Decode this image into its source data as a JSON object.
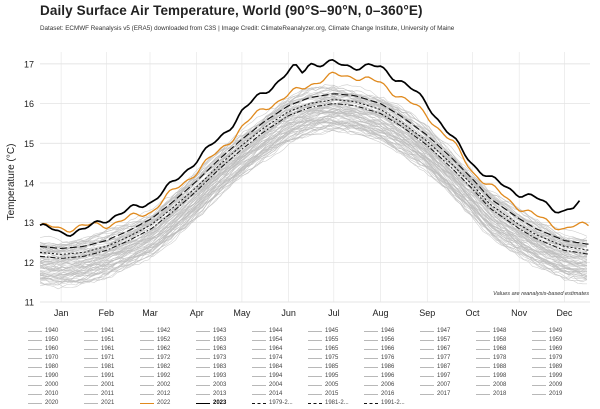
{
  "title": "Daily Surface Air Temperature, World (90°S–90°N, 0–360°E)",
  "subtitle": "Dataset: ECMWF Reanalysis v5 (ERA5) downloaded from C3S | Image Credit: ClimateReanalyzer.org, Climate Change Institute, University of Maine",
  "colors": {
    "background_years": "#bdbdbd",
    "year_2022": "#e08a1e",
    "year_2023": "#000000",
    "climatology": "#111111"
  },
  "chart_data": {
    "type": "line",
    "title": "Daily Surface Air Temperature, World (90°S–90°N, 0–360°E)",
    "xlabel": "",
    "ylabel": "Temperature (°C)",
    "x_tick_labels": [
      "Jan",
      "Feb",
      "Mar",
      "Apr",
      "May",
      "Jun",
      "Jul",
      "Aug",
      "Sep",
      "Oct",
      "Nov",
      "Dec"
    ],
    "x_ticks_day": [
      15,
      45,
      74,
      105,
      135,
      166,
      196,
      227,
      258,
      288,
      319,
      349
    ],
    "xlim": [
      1,
      366
    ],
    "ylim": [
      11,
      17.3
    ],
    "y_ticks": [
      11,
      12,
      13,
      14,
      15,
      16,
      17
    ],
    "grid": true,
    "annotation": "Values are reanalysis-based estimates",
    "background_years_count": 80,
    "series": [
      {
        "name": "2023",
        "day": [
          1,
          15,
          30,
          45,
          60,
          75,
          90,
          105,
          120,
          135,
          150,
          160,
          170,
          175,
          180,
          185,
          196,
          210,
          227,
          240,
          258,
          275,
          288,
          300,
          310,
          319,
          330,
          340,
          349,
          355,
          360
        ],
        "values": [
          12.9,
          12.75,
          12.8,
          13.1,
          13.3,
          13.55,
          14.0,
          14.6,
          15.1,
          15.8,
          16.3,
          16.6,
          16.9,
          16.8,
          17.05,
          17.0,
          17.0,
          16.95,
          16.9,
          16.6,
          16.0,
          15.1,
          14.5,
          14.1,
          13.9,
          13.75,
          13.6,
          13.4,
          13.3,
          13.35,
          13.5
        ]
      },
      {
        "name": "2022",
        "day": [
          1,
          15,
          30,
          45,
          60,
          75,
          90,
          105,
          120,
          135,
          150,
          166,
          180,
          196,
          210,
          227,
          240,
          258,
          275,
          288,
          300,
          319,
          330,
          349,
          366
        ],
        "values": [
          12.9,
          12.85,
          12.9,
          12.95,
          13.1,
          13.3,
          13.8,
          14.3,
          14.8,
          15.4,
          15.9,
          16.2,
          16.5,
          16.7,
          16.7,
          16.5,
          16.2,
          15.7,
          15.0,
          14.3,
          13.9,
          13.4,
          13.15,
          12.85,
          12.95
        ]
      },
      {
        "name": "1991–2020",
        "day": [
          1,
          15,
          30,
          45,
          60,
          75,
          90,
          105,
          120,
          135,
          150,
          166,
          180,
          196,
          210,
          227,
          240,
          258,
          275,
          288,
          300,
          319,
          330,
          349,
          366
        ],
        "values": [
          12.4,
          12.35,
          12.4,
          12.55,
          12.8,
          13.1,
          13.55,
          14.05,
          14.6,
          15.1,
          15.55,
          15.95,
          16.15,
          16.25,
          16.2,
          16.0,
          15.7,
          15.2,
          14.6,
          14.1,
          13.6,
          13.1,
          12.85,
          12.55,
          12.45
        ]
      },
      {
        "name": "1981–2010",
        "day": [
          1,
          15,
          30,
          45,
          60,
          75,
          90,
          105,
          120,
          135,
          150,
          166,
          180,
          196,
          210,
          227,
          240,
          258,
          275,
          288,
          300,
          319,
          330,
          349,
          366
        ],
        "values": [
          12.25,
          12.2,
          12.25,
          12.4,
          12.65,
          12.95,
          13.4,
          13.9,
          14.45,
          14.95,
          15.4,
          15.8,
          16.0,
          16.1,
          16.05,
          15.85,
          15.55,
          15.05,
          14.45,
          13.95,
          13.45,
          12.95,
          12.7,
          12.4,
          12.3
        ]
      },
      {
        "name": "1979–2000",
        "day": [
          1,
          15,
          30,
          45,
          60,
          75,
          90,
          105,
          120,
          135,
          150,
          166,
          180,
          196,
          210,
          227,
          240,
          258,
          275,
          288,
          300,
          319,
          330,
          349,
          366
        ],
        "values": [
          12.15,
          12.1,
          12.15,
          12.3,
          12.55,
          12.85,
          13.3,
          13.8,
          14.35,
          14.85,
          15.3,
          15.7,
          15.9,
          16.0,
          15.95,
          15.75,
          15.45,
          14.95,
          14.35,
          13.85,
          13.35,
          12.85,
          12.6,
          12.3,
          12.2
        ]
      }
    ]
  },
  "legend": {
    "columns": [
      [
        "1940",
        "1950",
        "1960",
        "1970",
        "1980",
        "1990",
        "2000",
        "2010",
        "2020"
      ],
      [
        "1941",
        "1951",
        "1961",
        "1971",
        "1981",
        "1991",
        "2001",
        "2011",
        "2021"
      ],
      [
        "1942",
        "1952",
        "1962",
        "1972",
        "1982",
        "1992",
        "2002",
        "2012",
        "2022"
      ],
      [
        "1943",
        "1953",
        "1963",
        "1973",
        "1983",
        "1993",
        "2003",
        "2013",
        "2023"
      ],
      [
        "1944",
        "1954",
        "1964",
        "1974",
        "1984",
        "1994",
        "2004",
        "2014",
        "1979-2..."
      ],
      [
        "1945",
        "1955",
        "1965",
        "1975",
        "1985",
        "1995",
        "2005",
        "2015",
        "1981-2..."
      ],
      [
        "1946",
        "1956",
        "1966",
        "1976",
        "1986",
        "1996",
        "2006",
        "2016",
        "1991-2..."
      ],
      [
        "1947",
        "1957",
        "1967",
        "1977",
        "1987",
        "1997",
        "2007",
        "2017",
        ""
      ],
      [
        "1948",
        "1958",
        "1968",
        "1978",
        "1988",
        "1998",
        "2008",
        "2018",
        ""
      ],
      [
        "1949",
        "1959",
        "1969",
        "1979",
        "1989",
        "1999",
        "2009",
        "2019",
        ""
      ]
    ]
  }
}
